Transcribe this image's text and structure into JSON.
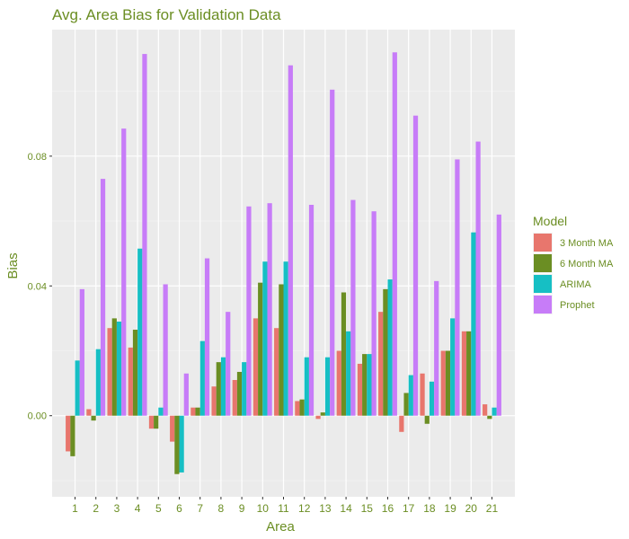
{
  "chart_data": {
    "type": "bar",
    "title": "Avg. Area Bias for Validation Data",
    "xlabel": "Area",
    "ylabel": "Bias",
    "ylim": [
      -0.025,
      0.119
    ],
    "yticks": [
      0.0,
      0.04,
      0.08
    ],
    "ytick_labels": [
      "0.00",
      "0.04",
      "0.08"
    ],
    "categories": [
      "1",
      "2",
      "3",
      "4",
      "5",
      "6",
      "7",
      "8",
      "9",
      "10",
      "11",
      "12",
      "13",
      "14",
      "15",
      "16",
      "17",
      "18",
      "19",
      "20",
      "21"
    ],
    "legend_title": "Model",
    "legend_position": "right",
    "grid": true,
    "series": [
      {
        "name": "3 Month MA",
        "color": "#E8766D",
        "values": [
          -0.011,
          0.002,
          0.027,
          0.021,
          -0.004,
          -0.008,
          0.0025,
          0.009,
          0.011,
          0.03,
          0.027,
          0.0045,
          -0.001,
          0.02,
          0.016,
          0.032,
          -0.005,
          0.013,
          0.02,
          0.026,
          0.0035
        ]
      },
      {
        "name": "6 Month MA",
        "color": "#6B8E23",
        "values": [
          -0.0125,
          -0.0015,
          0.03,
          0.0265,
          -0.004,
          -0.018,
          0.0025,
          0.0165,
          0.0135,
          0.041,
          0.0405,
          0.005,
          0.001,
          0.038,
          0.019,
          0.039,
          0.007,
          -0.0025,
          0.02,
          0.026,
          -0.001
        ]
      },
      {
        "name": "ARIMA",
        "color": "#16BFC4",
        "values": [
          0.017,
          0.0205,
          0.029,
          0.0515,
          0.0025,
          -0.0175,
          0.023,
          0.018,
          0.0165,
          0.0475,
          0.0475,
          0.018,
          0.018,
          0.026,
          0.019,
          0.042,
          0.0125,
          0.0105,
          0.03,
          0.0565,
          0.0025
        ]
      },
      {
        "name": "Prophet",
        "color": "#C77CF8",
        "values": [
          0.039,
          0.073,
          0.0885,
          0.1115,
          0.0405,
          0.013,
          0.0485,
          0.032,
          0.0645,
          0.0655,
          0.108,
          0.065,
          0.1005,
          0.0665,
          0.063,
          0.112,
          0.0925,
          0.0415,
          0.079,
          0.0845,
          0.062
        ]
      }
    ]
  }
}
